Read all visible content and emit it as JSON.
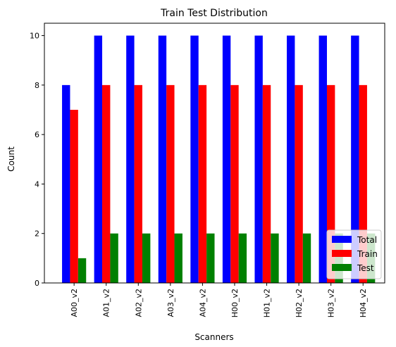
{
  "chart_data": {
    "type": "bar",
    "title": "Train Test Distribution",
    "xlabel": "Scanners",
    "ylabel": "Count",
    "categories": [
      "A00_v2",
      "A01_v2",
      "A02_v2",
      "A03_v2",
      "A04_v2",
      "H00_v2",
      "H01_v2",
      "H02_v2",
      "H03_v2",
      "H04_v2"
    ],
    "series": [
      {
        "name": "Total",
        "color": "#0000ff",
        "values": [
          8,
          10,
          10,
          10,
          10,
          10,
          10,
          10,
          10,
          10
        ]
      },
      {
        "name": "Train",
        "color": "#ff0000",
        "values": [
          7,
          8,
          8,
          8,
          8,
          8,
          8,
          8,
          8,
          8
        ]
      },
      {
        "name": "Test",
        "color": "#008000",
        "values": [
          1,
          2,
          2,
          2,
          2,
          2,
          2,
          2,
          2,
          2
        ]
      }
    ],
    "ylim": [
      0,
      10.5
    ],
    "yticks": [
      0,
      2,
      4,
      6,
      8,
      10
    ],
    "grid": false,
    "legend_position": "lower right"
  }
}
